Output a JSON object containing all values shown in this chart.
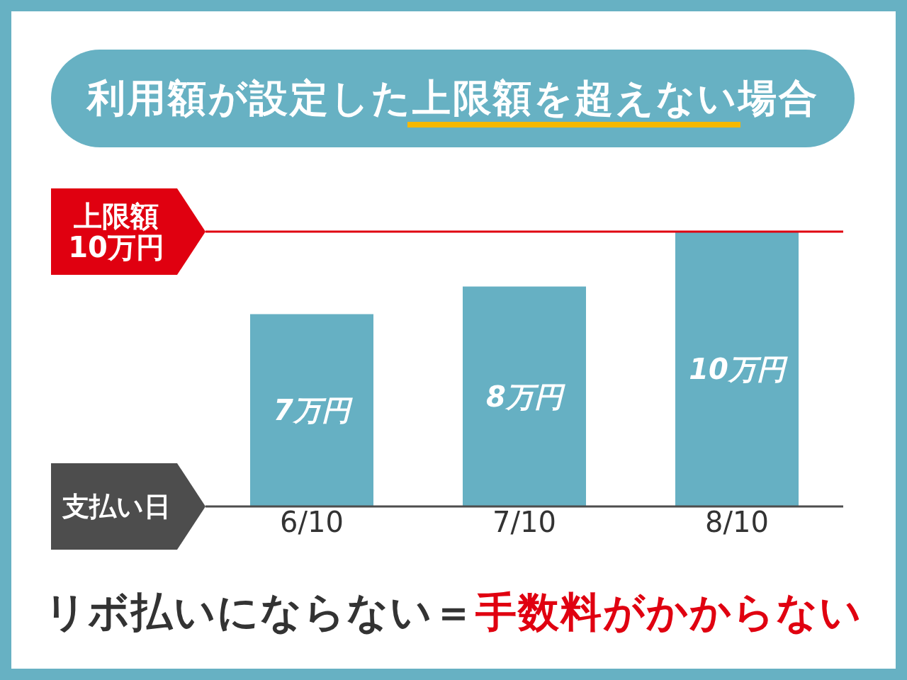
{
  "chart_data": {
    "type": "bar",
    "title": "利用額が設定した上限額を超えない場合",
    "xlabel": "支払い日",
    "categories": [
      "6/10",
      "7/10",
      "8/10"
    ],
    "values": [
      7,
      8,
      10
    ],
    "value_labels": [
      "7万円",
      "8万円",
      "10万円"
    ],
    "color": "#66b0c3",
    "ylim": [
      0,
      10
    ],
    "tick_labels": "x",
    "ref_lines": [
      {
        "axis": "y",
        "value": 10,
        "label": "上限額\n10万円",
        "color": "#e00010"
      }
    ],
    "annotations": [
      "リボ払いにならない＝",
      "手数料がかからない"
    ]
  }
}
